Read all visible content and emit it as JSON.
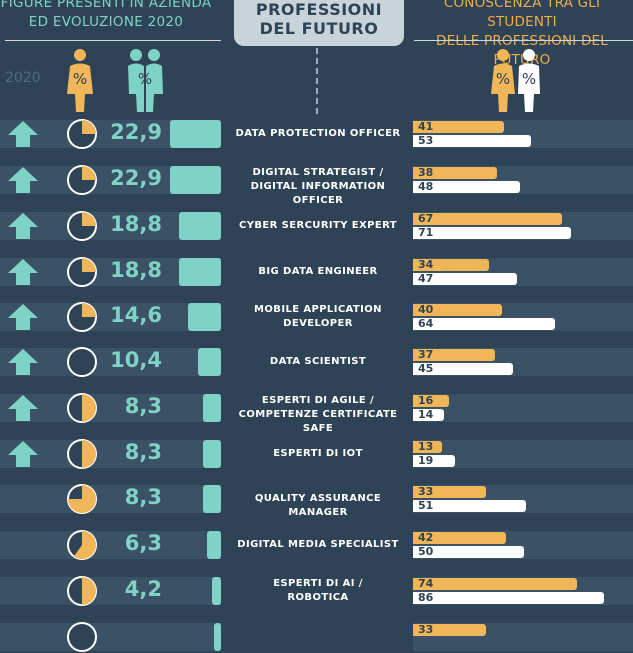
{
  "header": {
    "left_title_line1": "FIGURE PRESENTI IN AZIENDA",
    "left_title_line2": "ED EVOLUZIONE 2020",
    "center_title_line1": "PROFESSIONI",
    "center_title_line2": "DEL FUTURO",
    "right_title_line1": "CONOSCENZA TRA GLI STUDENTI",
    "right_title_line2": "DELLE PROFESSIONI DEL FUTURO",
    "year": "2020",
    "pct_symbol": "%"
  },
  "colors": {
    "teal": "#7fd3c6",
    "orange": "#f0b658",
    "white": "#ffffff",
    "background": "#2e4355"
  },
  "icons": [
    "up-arrow-icon",
    "pie-clock-icon",
    "female-person-icon",
    "male-person-icon"
  ],
  "chart_data": {
    "type": "bar",
    "categories": [
      "DATA PROTECTION OFFICER",
      "DIGITAL STRATEGIST / DIGITAL INFORMATION OFFICER",
      "CYBER SERCURITY EXPERT",
      "BIG DATA ENGINEER",
      "MOBILE APPLICATION DEVELOPER",
      "DATA SCIENTIST",
      "ESPERTI DI AGILE / COMPETENZE CERTIFICATE SAFE",
      "ESPERTI DI IOT",
      "QUALITY ASSURANCE MANAGER",
      "DIGITAL MEDIA SPECIALIST",
      "ESPERTI DI AI / ROBOTICA"
    ],
    "label_lines": [
      [
        "DATA PROTECTION OFFICER"
      ],
      [
        "DIGITAL STRATEGIST /",
        "DIGITAL INFORMATION OFFICER"
      ],
      [
        "CYBER SERCURITY EXPERT"
      ],
      [
        "BIG DATA ENGINEER"
      ],
      [
        "MOBILE APPLICATION",
        "DEVELOPER"
      ],
      [
        "DATA SCIENTIST"
      ],
      [
        "ESPERTI DI AGILE /",
        "COMPETENZE CERTIFICATE SAFE"
      ],
      [
        "ESPERTI DI IOT"
      ],
      [
        "QUALITY ASSURANCE MANAGER"
      ],
      [
        "DIGITAL MEDIA SPECIALIST"
      ],
      [
        "ESPERTI DI AI /",
        "ROBOTICA"
      ]
    ],
    "company_presence": [
      22.9,
      22.9,
      18.8,
      18.8,
      14.6,
      10.4,
      8.3,
      8.3,
      8.3,
      6.3,
      4.2
    ],
    "company_presence_labels": [
      "22,9",
      "22,9",
      "18,8",
      "18,8",
      "14,6",
      "10,4",
      "8,3",
      "8,3",
      "8,3",
      "6,3",
      "4,2"
    ],
    "growing_2020": [
      true,
      true,
      true,
      true,
      true,
      true,
      true,
      true,
      false,
      false,
      false
    ],
    "pie_fraction": [
      0.25,
      0.25,
      0.25,
      0.25,
      0.25,
      0.0,
      0.5,
      0.5,
      0.75,
      0.6,
      0.5
    ],
    "series": [
      {
        "name": "female",
        "values": [
          41,
          38,
          67,
          34,
          40,
          37,
          16,
          13,
          33,
          42,
          74
        ]
      },
      {
        "name": "male",
        "values": [
          53,
          48,
          71,
          47,
          64,
          45,
          14,
          19,
          51,
          50,
          86
        ]
      }
    ],
    "partial_next_row": {
      "female": "33"
    }
  }
}
